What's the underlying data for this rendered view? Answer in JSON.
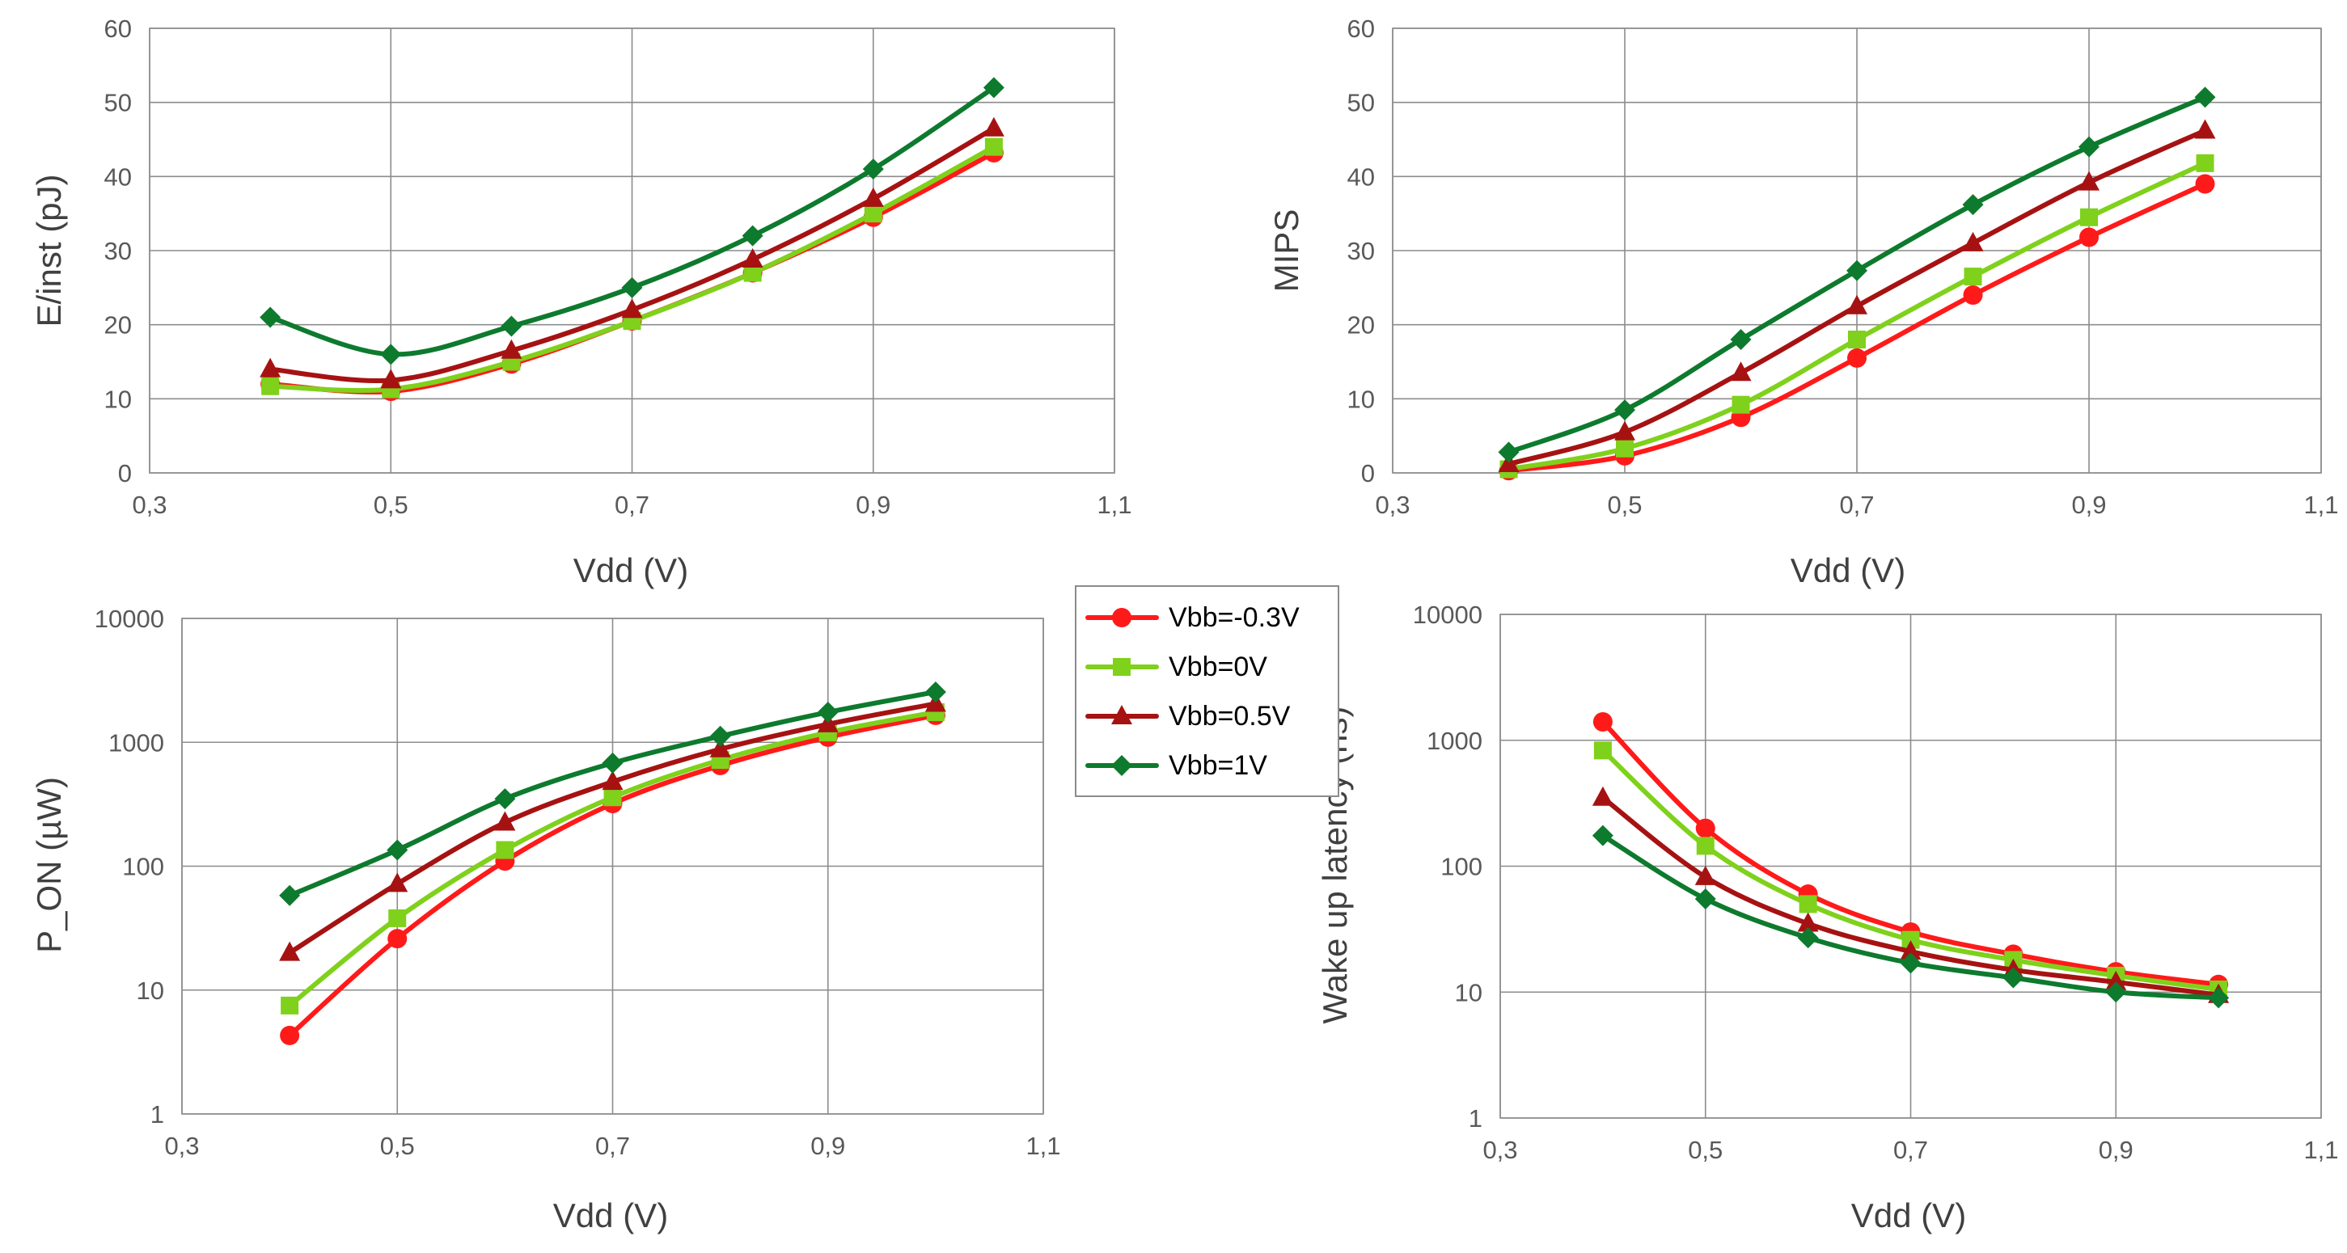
{
  "colors": {
    "s_neg03": "#ff1a1a",
    "s_0": "#7fd11b",
    "s_05": "#a61212",
    "s_1": "#0d7a2e",
    "grid": "#8c8c8c",
    "tick": "#595959"
  },
  "legend": {
    "placement": "center-right",
    "entries": [
      {
        "label": "Vbb=-0.3V",
        "color": "#ff1a1a",
        "marker": "circle"
      },
      {
        "label": "Vbb=0V",
        "color": "#7fd11b",
        "marker": "square"
      },
      {
        "label": "Vbb=0.5V",
        "color": "#a61212",
        "marker": "triangle"
      },
      {
        "label": "Vbb=1V",
        "color": "#0d7a2e",
        "marker": "diamond"
      }
    ]
  },
  "chart_data": [
    {
      "id": "energy",
      "type": "line",
      "xlabel": "Vdd (V)",
      "ylabel": "E/inst (pJ)",
      "xlim": [
        0.3,
        1.1
      ],
      "ylim": [
        0,
        60
      ],
      "yscale": "linear",
      "grid": true,
      "x_ticks": [
        "0,3",
        "0,5",
        "0,7",
        "0,9",
        "1,1"
      ],
      "y_ticks": [
        "0",
        "10",
        "20",
        "30",
        "40",
        "50",
        "60"
      ],
      "x": [
        0.4,
        0.5,
        0.6,
        0.7,
        0.8,
        0.9,
        1.0
      ],
      "series": [
        {
          "name": "Vbb=-0.3V",
          "values": [
            12,
            11,
            14.7,
            20.5,
            27,
            34.5,
            43.2
          ]
        },
        {
          "name": "Vbb=0V",
          "values": [
            11.7,
            11.3,
            15,
            20.5,
            27,
            35,
            44
          ]
        },
        {
          "name": "Vbb=0.5V",
          "values": [
            14,
            12.5,
            16.5,
            22,
            28.8,
            37,
            46.5
          ]
        },
        {
          "name": "Vbb=1V",
          "values": [
            21,
            16,
            19.8,
            25,
            32,
            41,
            52
          ]
        }
      ]
    },
    {
      "id": "mips",
      "type": "line",
      "xlabel": "Vdd (V)",
      "ylabel": "MIPS",
      "xlim": [
        0.3,
        1.1
      ],
      "ylim": [
        0,
        60
      ],
      "yscale": "linear",
      "grid": true,
      "x_ticks": [
        "0,3",
        "0,5",
        "0,7",
        "0,9",
        "1,1"
      ],
      "y_ticks": [
        "0",
        "10",
        "20",
        "30",
        "40",
        "50",
        "60"
      ],
      "x": [
        0.4,
        0.5,
        0.6,
        0.7,
        0.8,
        0.9,
        1.0
      ],
      "series": [
        {
          "name": "Vbb=-0.3V",
          "values": [
            0.3,
            2.3,
            7.5,
            15.5,
            24,
            31.8,
            39
          ]
        },
        {
          "name": "Vbb=0V",
          "values": [
            0.5,
            3.3,
            9.2,
            18,
            26.5,
            34.5,
            41.8
          ]
        },
        {
          "name": "Vbb=0.5V",
          "values": [
            1.2,
            5.5,
            13.5,
            22.5,
            31,
            39.2,
            46.2
          ]
        },
        {
          "name": "Vbb=1V",
          "values": [
            2.8,
            8.5,
            18,
            27.3,
            36.2,
            44,
            50.7
          ]
        }
      ]
    },
    {
      "id": "p_on",
      "type": "line",
      "xlabel": "Vdd (V)",
      "ylabel": "P_ON (µW)",
      "xlim": [
        0.3,
        1.1
      ],
      "ylim": [
        1,
        10000
      ],
      "yscale": "log",
      "grid": true,
      "x_ticks": [
        "0,3",
        "0,5",
        "0,7",
        "0,9",
        "1,1"
      ],
      "y_ticks": [
        "1",
        "10",
        "100",
        "1000",
        "10000"
      ],
      "x": [
        0.4,
        0.5,
        0.6,
        0.7,
        0.8,
        0.9,
        1.0
      ],
      "series": [
        {
          "name": "Vbb=-0.3V",
          "values": [
            4.3,
            26,
            110,
            320,
            650,
            1100,
            1650
          ]
        },
        {
          "name": "Vbb=0V",
          "values": [
            7.5,
            38,
            135,
            360,
            720,
            1200,
            1750
          ]
        },
        {
          "name": "Vbb=0.5V",
          "values": [
            20,
            72,
            225,
            480,
            880,
            1400,
            2050
          ]
        },
        {
          "name": "Vbb=1V",
          "values": [
            58,
            135,
            350,
            680,
            1120,
            1750,
            2550
          ]
        }
      ]
    },
    {
      "id": "wakeup",
      "type": "line",
      "xlabel": "Vdd (V)",
      "ylabel": "Wake up latency (ns)",
      "xlim": [
        0.3,
        1.1
      ],
      "ylim": [
        1,
        10000
      ],
      "yscale": "log",
      "grid": true,
      "x_ticks": [
        "0,3",
        "0,5",
        "0,7",
        "0,9",
        "1,1"
      ],
      "y_ticks": [
        "1",
        "10",
        "100",
        "1000",
        "10000"
      ],
      "x": [
        0.4,
        0.5,
        0.6,
        0.7,
        0.8,
        0.9,
        1.0
      ],
      "series": [
        {
          "name": "Vbb=-0.3V",
          "values": [
            1400,
            200,
            60,
            30,
            20,
            14.5,
            11.5
          ]
        },
        {
          "name": "Vbb=0V",
          "values": [
            830,
            145,
            50,
            26,
            18,
            13.5,
            10.5
          ]
        },
        {
          "name": "Vbb=0.5V",
          "values": [
            350,
            82,
            35,
            21,
            15,
            12,
            9.5
          ]
        },
        {
          "name": "Vbb=1V",
          "values": [
            175,
            55,
            27,
            17,
            13,
            10,
            9
          ]
        }
      ]
    }
  ]
}
